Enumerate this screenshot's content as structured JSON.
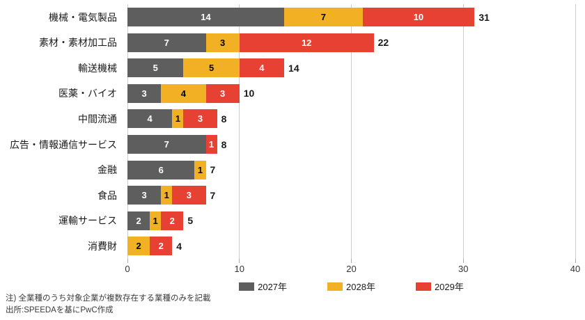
{
  "chart_data": {
    "type": "bar",
    "orientation": "horizontal",
    "stacked": true,
    "title": "",
    "xlabel": "",
    "ylabel": "",
    "xlim": [
      0,
      40
    ],
    "x_ticks": [
      0,
      10,
      20,
      30,
      40
    ],
    "grid": "vertical",
    "legend_position": "bottom",
    "categories": [
      "機械・電気製品",
      "素材・素材加工品",
      "輸送機械",
      "医薬・バイオ",
      "中間流通",
      "広告・情報通信サービス",
      "金融",
      "食品",
      "運輸サービス",
      "消費財"
    ],
    "series": [
      {
        "name": "2027年",
        "color": "#5E5E5E",
        "label_color": "#ffffff",
        "values": [
          14,
          7,
          5,
          3,
          4,
          7,
          6,
          3,
          2,
          0
        ]
      },
      {
        "name": "2028年",
        "color": "#F2B024",
        "label_color": "#000000",
        "values": [
          7,
          3,
          5,
          4,
          1,
          0,
          1,
          1,
          1,
          2
        ]
      },
      {
        "name": "2029年",
        "color": "#E64133",
        "label_color": "#ffffff",
        "values": [
          10,
          12,
          4,
          3,
          3,
          1,
          0,
          3,
          2,
          2
        ]
      }
    ],
    "totals": [
      31,
      22,
      14,
      10,
      8,
      8,
      7,
      7,
      5,
      4
    ]
  },
  "notes": {
    "note1": "注) 全業種のうち対象企業が複数存在する業種のみを記載",
    "note2": "出所:SPEEDAを基にPwC作成"
  },
  "colors": {
    "gridline": "#cccccc",
    "tick_text": "#333333",
    "total_text": "#1a1a1a"
  }
}
